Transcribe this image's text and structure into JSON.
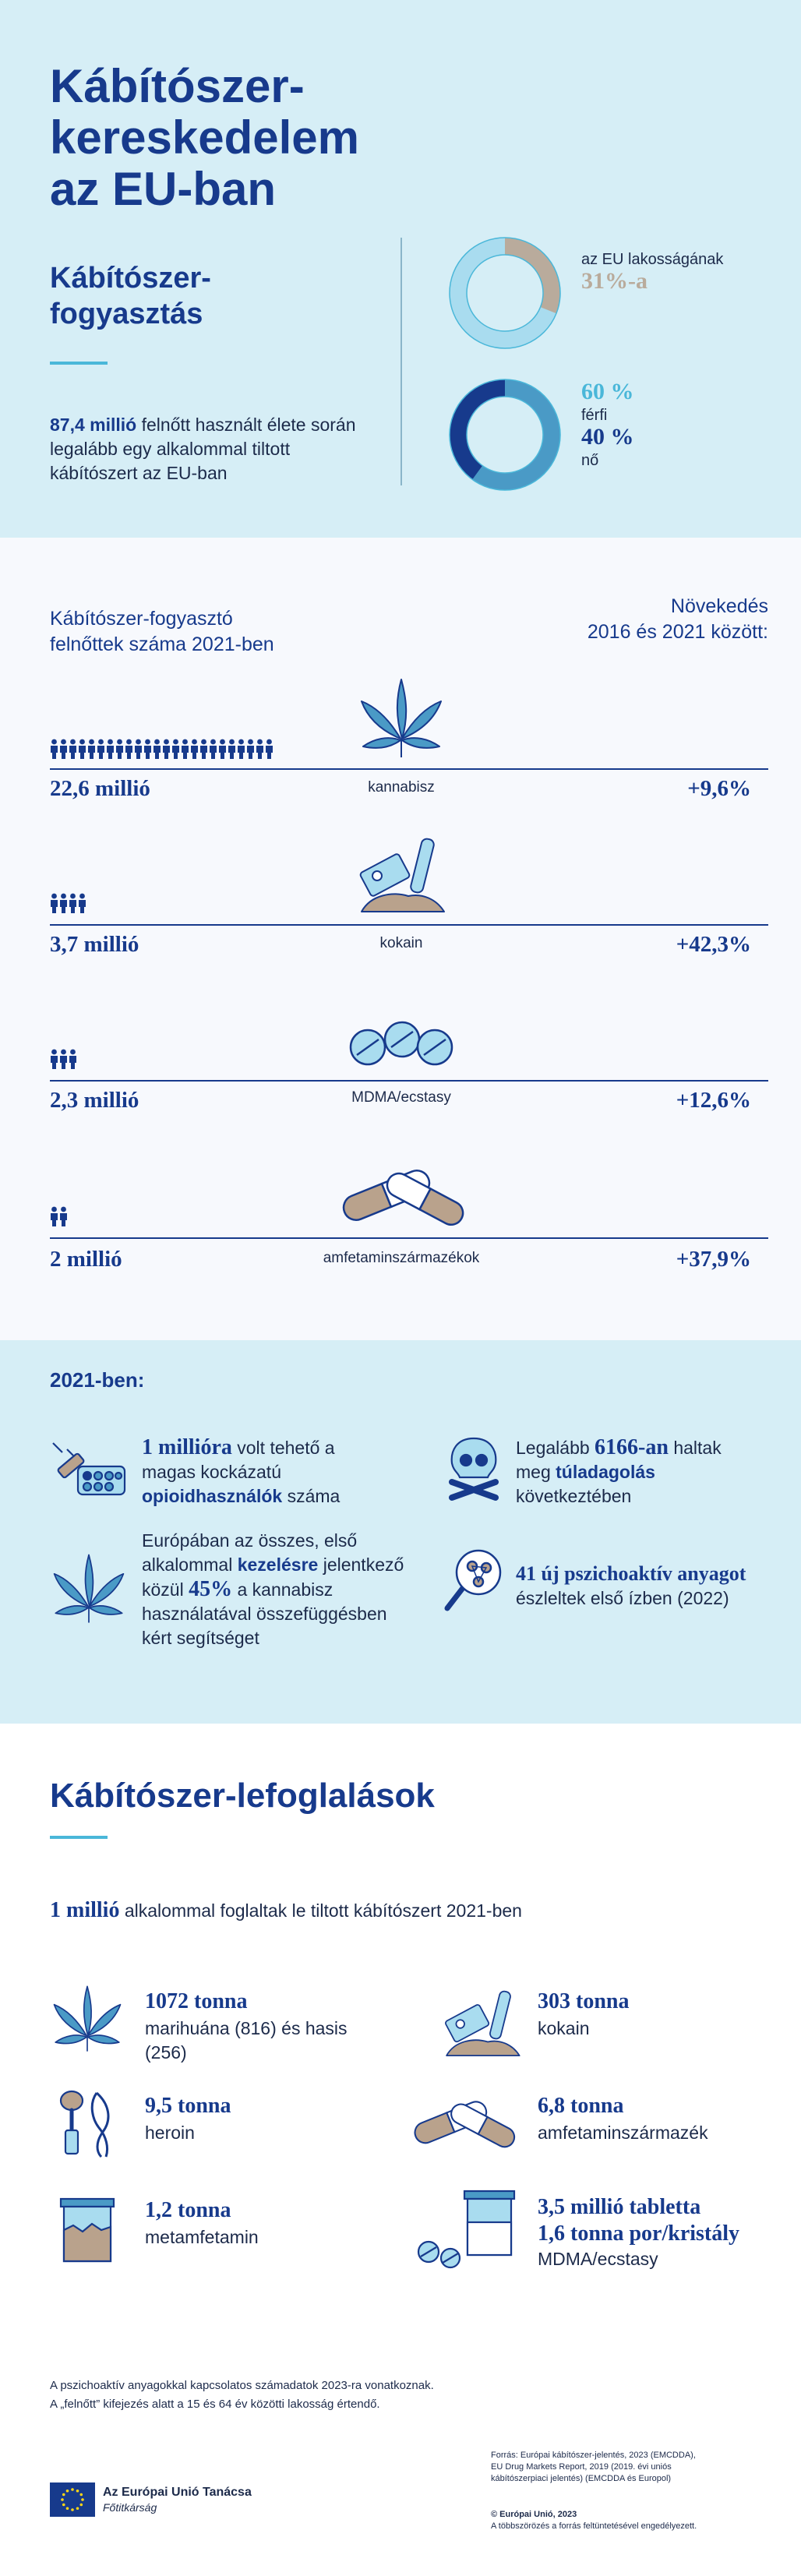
{
  "header": {
    "title": "Kábítószer-\nkereskedelem\naz EU-ban"
  },
  "consumption": {
    "title": "Kábítószer-\nfogyasztás",
    "intro_value": "87,4 millió",
    "intro_text": "felnőtt használt élete során legalább egy alkalommal tiltott kábítószert az EU-ban",
    "population_label": "az EU lakosságának",
    "population_value": "31%-a",
    "population_fraction": 0.31,
    "male_value": "60 %",
    "male_label": "férfi",
    "female_value": "40 %",
    "female_label": "nő",
    "male_fraction": 0.6,
    "colors": {
      "dark_blue": "#173a8c",
      "light_blue": "#4ab7d9",
      "beige": "#b9ab9c",
      "pale_blue": "#a9dcef"
    }
  },
  "drugs": {
    "left_header": "Kábítószer-fogyasztó\nfelnőttek száma 2021-ben",
    "right_header": "Növekedés\n2016 és 2021 között:",
    "rows": [
      {
        "count": "22,6 millió",
        "name": "kannabisz",
        "growth": "+9,6%",
        "icon": "cannabis-leaf-icon",
        "people_icons": 24
      },
      {
        "count": "3,7 millió",
        "name": "kokain",
        "growth": "+42,3%",
        "icon": "cocaine-razor-icon",
        "people_icons": 4
      },
      {
        "count": "2,3 millió",
        "name": "MDMA/ecstasy",
        "growth": "+12,6%",
        "icon": "ecstasy-pills-icon",
        "people_icons": 3
      },
      {
        "count": "2 millió",
        "name": "amfetaminszármazékok",
        "growth": "+37,9%",
        "icon": "amphetamine-capsules-icon",
        "people_icons": 2
      }
    ]
  },
  "facts2021": {
    "heading": "2021-ben:",
    "opioid_value": "1 millióra",
    "opioid_text1": "volt tehető a magas kockázatú",
    "opioid_bold": "opioidhasználók",
    "opioid_text2": "száma",
    "overdose_pre": "Legalább",
    "overdose_value": "6166-an",
    "overdose_mid": "haltak meg",
    "overdose_bold": "túladagolás",
    "overdose_post": "következtében",
    "treatment_pre": "Európában az összes, első alkalommal",
    "treatment_bold": "kezelésre",
    "treatment_mid": "jelentkező közül",
    "treatment_value": "45%",
    "treatment_post": "a kannabisz használatával összefüggésben kért segítséget",
    "nps_bold": "41 új pszichoaktív anyagot",
    "nps_text": "észleltek első ízben (2022)"
  },
  "seizures": {
    "title": "Kábítószer-lefoglalások",
    "intro_value": "1 millió",
    "intro_text": "alkalommal foglaltak le tiltott kábítószert 2021-ben",
    "items": [
      {
        "value": "1072 tonna",
        "label": "marihuána (816) és hasis (256)",
        "icon": "cannabis-leaf-icon"
      },
      {
        "value": "303 tonna",
        "label": "kokain",
        "icon": "cocaine-razor-icon"
      },
      {
        "value": "9,5 tonna",
        "label": "heroin",
        "icon": "heroin-spoon-syringe-icon"
      },
      {
        "value": "6,8 tonna",
        "label": "amfetaminszármazék",
        "icon": "amphetamine-capsules-icon"
      },
      {
        "value": "1,2 tonna",
        "label": "metamfetamin",
        "icon": "methamphetamine-jar-icon"
      },
      {
        "value": "3,5 millió tabletta\n1,6 tonna por/kristály",
        "label": "MDMA/ecstasy",
        "icon": "mdma-jar-pills-icon"
      }
    ]
  },
  "footer": {
    "note": "A pszichoaktív anyagokkal kapcsolatos számadatok 2023-ra vonatkoznak.\nA „felnőtt” kifejezés alatt a 15 és 64 év közötti lakosság értendő.",
    "source": "Forrás: Európai kábítószer-jelentés, 2023 (EMCDDA),\nEU Drug Markets Report, 2019 (2019. évi uniós\nkábítószerpiaci jelentés) (EMCDDA és Europol)",
    "copyright": "© Európai Unió, 2023",
    "copyright_note": "A többszörözés a forrás feltüntetésével engedélyezett.",
    "logo_name": "Az Európai Unió Tanácsa",
    "logo_sub": "Főtitkárság"
  }
}
